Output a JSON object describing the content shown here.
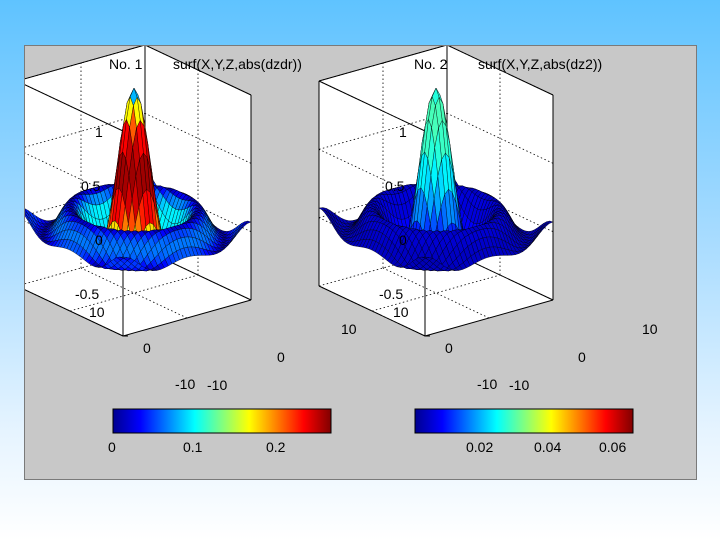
{
  "colors": {
    "slide_top": "#5fc3ff",
    "figure_bg": "#c8c8c8",
    "jet": [
      "#00008f",
      "#0000ff",
      "#0080ff",
      "#00ffff",
      "#80ff80",
      "#ffff00",
      "#ff8000",
      "#ff0000",
      "#800000"
    ]
  },
  "plot1": {
    "number": "No. 1",
    "command": "surf(X,Y,Z,abs(dzdr))",
    "z_ticks": [
      "1",
      "0.5",
      "0",
      "-0.5"
    ],
    "y_ticks": [
      "10",
      "0",
      "-10"
    ],
    "x_ticks": [
      "10",
      "0",
      "-10"
    ],
    "colorbar_ticks": [
      "0",
      "0.1",
      "0.2"
    ],
    "colorbar_range": [
      0,
      0.26
    ]
  },
  "plot2": {
    "number": "No. 2",
    "command": "surf(X,Y,Z,abs(dz2))",
    "z_ticks": [
      "1",
      "0.5",
      "0",
      "-0.5"
    ],
    "y_ticks": [
      "10",
      "0",
      "-10"
    ],
    "x_ticks": [
      "10",
      "0",
      "-10"
    ],
    "colorbar_ticks": [
      "0.02",
      "0.04",
      "0.06"
    ],
    "colorbar_range": [
      0.003,
      0.066
    ]
  },
  "chart_data": [
    {
      "type": "surface",
      "function": "Z = sin(R)/R, R = sqrt(X^2+Y^2)",
      "color_by": "abs(dzdr)",
      "x_range": [
        -10,
        10
      ],
      "y_range": [
        -10,
        10
      ],
      "z_range": [
        -0.5,
        1
      ],
      "colorbar": {
        "ticks": [
          0,
          0.1,
          0.2
        ],
        "range": [
          0,
          0.26
        ]
      }
    },
    {
      "type": "surface",
      "function": "Z = sin(R)/R, R = sqrt(X^2+Y^2)",
      "color_by": "abs(dz2)",
      "x_range": [
        -10,
        10
      ],
      "y_range": [
        -10,
        10
      ],
      "z_range": [
        -0.5,
        1
      ],
      "colorbar": {
        "ticks": [
          0.02,
          0.04,
          0.06
        ],
        "range": [
          0.003,
          0.066
        ]
      }
    }
  ]
}
